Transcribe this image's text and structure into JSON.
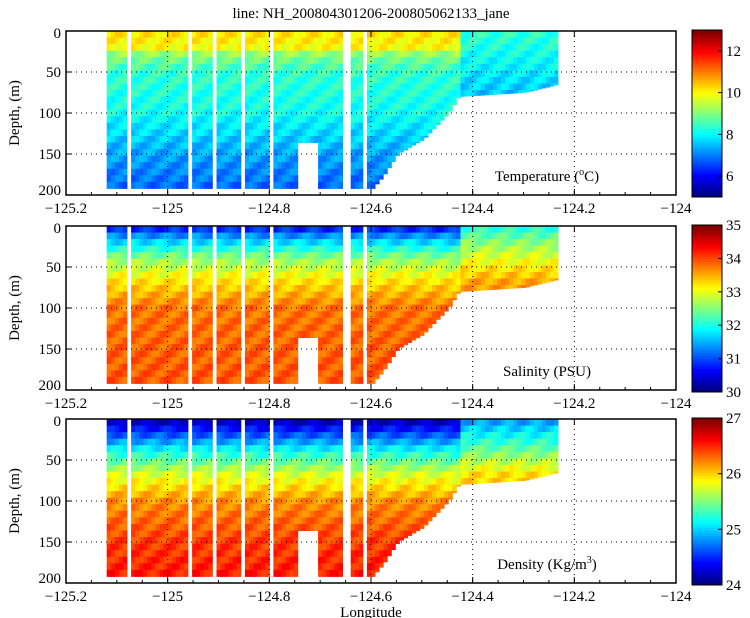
{
  "title": "line: NH_200804301206-200805062133_jane",
  "xlabel": "Longitude",
  "chart_data": [
    {
      "type": "heatmap",
      "name": "temperature",
      "label": "Temperature (",
      "label_sup": "o",
      "label_end": "C)",
      "ylabel": "Depth, (m)",
      "xlim": [
        -125.2,
        -124
      ],
      "ylim": [
        200,
        0
      ],
      "xticks": [
        -125.2,
        -125,
        -124.8,
        -124.6,
        -124.4,
        -124.2,
        -124
      ],
      "xticklabels": [
        "−125.2",
        "−125",
        "−124.8",
        "−124.6",
        "−124.4",
        "−124.2",
        "−124"
      ],
      "yticks": [
        0,
        50,
        100,
        150,
        200
      ],
      "yticklabels": [
        "0",
        "50",
        "100",
        "150",
        "200"
      ],
      "clim": [
        5,
        13
      ],
      "cticks": [
        6,
        8,
        10,
        12
      ],
      "cticklabels": [
        "6",
        "8",
        "10",
        "12"
      ],
      "offshore_profile": {
        "depth": [
          0,
          20,
          30,
          50,
          100,
          150,
          190
        ],
        "value": [
          10.2,
          10,
          9,
          8.4,
          8.1,
          7.3,
          6.8
        ]
      },
      "shelf_profile": {
        "depth": [
          0,
          40,
          80
        ],
        "value": [
          8.4,
          8,
          7.5
        ]
      }
    },
    {
      "type": "heatmap",
      "name": "salinity",
      "label": "Salinity (PSU)",
      "label_sup": "",
      "label_end": "",
      "ylabel": "Depth, (m)",
      "xlim": [
        -125.2,
        -124
      ],
      "ylim": [
        200,
        0
      ],
      "xticks": [
        -125.2,
        -125,
        -124.8,
        -124.6,
        -124.4,
        -124.2,
        -124
      ],
      "xticklabels": [
        "−125.2",
        "−125",
        "−124.8",
        "−124.6",
        "−124.4",
        "−124.2",
        "−124"
      ],
      "yticks": [
        0,
        50,
        100,
        150,
        200
      ],
      "yticklabels": [
        "0",
        "50",
        "100",
        "150",
        "200"
      ],
      "clim": [
        30,
        35
      ],
      "cticks": [
        30,
        31,
        32,
        33,
        34,
        35
      ],
      "cticklabels": [
        "30",
        "31",
        "32",
        "33",
        "34",
        "35"
      ],
      "offshore_profile": {
        "depth": [
          0,
          15,
          40,
          70,
          100,
          150,
          190
        ],
        "value": [
          30.6,
          31.5,
          32.6,
          33.3,
          33.8,
          33.9,
          33.95
        ]
      },
      "shelf_profile": {
        "depth": [
          0,
          30,
          70
        ],
        "value": [
          32,
          32.8,
          33.6
        ]
      }
    },
    {
      "type": "heatmap",
      "name": "density",
      "label": "Density (Kg/m",
      "label_sup": "3",
      "label_end": ")",
      "ylabel": "Depth, (m)",
      "xlim": [
        -125.2,
        -124
      ],
      "ylim": [
        200,
        0
      ],
      "xticks": [
        -125.2,
        -125,
        -124.8,
        -124.6,
        -124.4,
        -124.2,
        -124
      ],
      "xticklabels": [
        "−125.2",
        "−125",
        "−124.8",
        "−124.6",
        "−124.4",
        "−124.2",
        "−124"
      ],
      "yticks": [
        0,
        50,
        100,
        150,
        200
      ],
      "yticklabels": [
        "0",
        "50",
        "100",
        "150",
        "200"
      ],
      "clim": [
        24,
        27
      ],
      "cticks": [
        24,
        25,
        26,
        27
      ],
      "cticklabels": [
        "24",
        "25",
        "26",
        "27"
      ],
      "offshore_profile": {
        "depth": [
          0,
          15,
          40,
          70,
          100,
          150,
          190
        ],
        "value": [
          24.1,
          24.5,
          25.2,
          25.8,
          26.2,
          26.45,
          26.55
        ]
      },
      "shelf_profile": {
        "depth": [
          0,
          30,
          70
        ],
        "value": [
          24.8,
          25.3,
          26
        ]
      }
    }
  ],
  "section": {
    "lon_range": [
      -125.12,
      -124.24
    ],
    "shelf_break_lon": -124.43,
    "bottom_depth": {
      "lon": [
        -125.12,
        -124.6,
        -124.58,
        -124.55,
        -124.5,
        -124.45,
        -124.43,
        -124.3,
        -124.24
      ],
      "depth": [
        192,
        192,
        178,
        150,
        132,
        100,
        80,
        75,
        66
      ]
    },
    "gap_lons": [
      -125.08,
      -124.96,
      -124.91,
      -124.86,
      -124.8,
      -124.66,
      -124.65,
      -124.62
    ]
  }
}
